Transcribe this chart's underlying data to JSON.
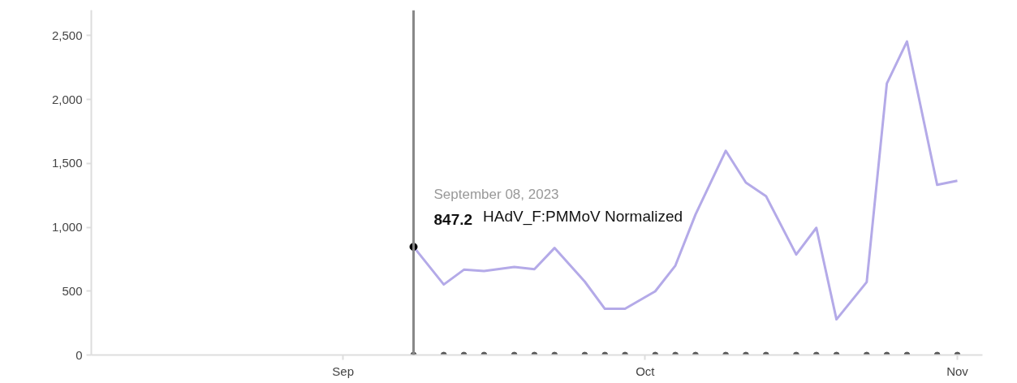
{
  "chart_data": {
    "type": "line",
    "x": [
      "2023-09-08",
      "2023-09-11",
      "2023-09-13",
      "2023-09-15",
      "2023-09-18",
      "2023-09-20",
      "2023-09-22",
      "2023-09-25",
      "2023-09-27",
      "2023-09-29",
      "2023-10-02",
      "2023-10-04",
      "2023-10-06",
      "2023-10-09",
      "2023-10-11",
      "2023-10-13",
      "2023-10-16",
      "2023-10-18",
      "2023-10-20",
      "2023-10-23",
      "2023-10-25",
      "2023-10-27",
      "2023-10-30",
      "2023-11-01"
    ],
    "series": [
      {
        "color": "#b4aae8",
        "values": [
          847.2,
          552,
          668,
          658,
          690,
          672,
          838,
          575,
          362,
          362,
          499,
          700,
          1100,
          1599,
          1350,
          1244,
          787,
          996,
          279,
          571,
          2126,
          2455,
          1332,
          1364
        ]
      },
      {
        "type": "scatter",
        "marker": "circle",
        "color": "#555555",
        "values": [
          0,
          0,
          0,
          0,
          0,
          0,
          0,
          0,
          0,
          0,
          0,
          0,
          0,
          0,
          0,
          0,
          0,
          0,
          0,
          0,
          0,
          0,
          0,
          0
        ]
      },
      {
        "type": "scatter",
        "marker": "circle",
        "color": "#000000",
        "x": [
          "2023-09-08"
        ],
        "values": [
          847.2
        ]
      }
    ],
    "xlim": [
      "2023-08-07",
      "2023-11-03T12:00"
    ],
    "xticks": [
      {
        "value": "2023-09-01",
        "label": "Sep"
      },
      {
        "value": "2023-10-01",
        "label": "Oct"
      },
      {
        "value": "2023-11-01",
        "label": "Nov"
      }
    ],
    "ylim": [
      0,
      2700
    ],
    "yticks": [
      0,
      500,
      {
        "value": 1000,
        "label": "1,000"
      },
      {
        "value": 1500,
        "label": "1,500"
      },
      {
        "value": 2000,
        "label": "2,000"
      },
      {
        "value": 2500,
        "label": "2,500"
      }
    ],
    "ref_lines": [
      {
        "axis": "x",
        "value": "2023-09-08",
        "color": "#888888"
      }
    ],
    "annotations": [
      {
        "text": "September 08, 2023\n847.2 HAdV_F:PMMoV Normalized",
        "x": "2023-09-08",
        "y": 847.2
      }
    ],
    "grid": false
  }
}
